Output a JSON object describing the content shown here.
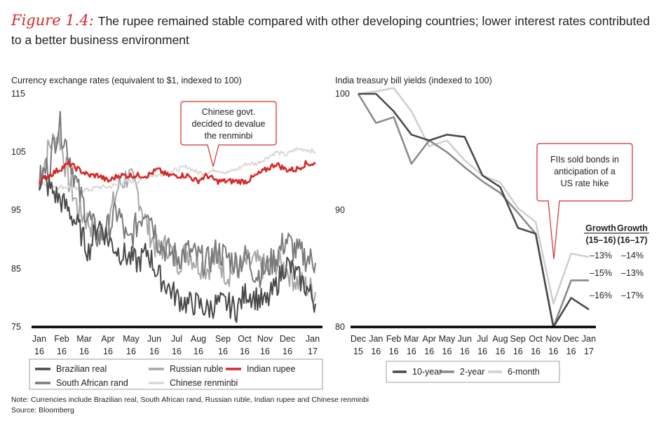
{
  "figure": {
    "label": "Figure 1.4:",
    "title": "The rupee remained stable compared with other developing countries; lower interest rates contributed to a better business environment"
  },
  "chart_data": [
    {
      "type": "line",
      "title": "Currency exchange rates (equivalent to $1, indexed to 100)",
      "ylim": [
        75,
        115
      ],
      "y_ticks": [
        "115",
        "105",
        "95",
        "85",
        "75"
      ],
      "x_ticks": [
        [
          "Jan",
          "16"
        ],
        [
          "Feb",
          "16"
        ],
        [
          "Mar",
          "16"
        ],
        [
          "Apr",
          "16"
        ],
        [
          "May",
          "16"
        ],
        [
          "Jun",
          "16"
        ],
        [
          "Jul",
          "16"
        ],
        [
          "Aug",
          "16"
        ],
        [
          "Sep",
          "16"
        ],
        [
          "Oct",
          "16"
        ],
        [
          "Nov",
          "16"
        ],
        [
          "Dec",
          "16"
        ],
        [
          "Jan",
          "17"
        ]
      ],
      "annotation": [
        "Chinese govt.",
        "decided to devalue",
        "the renminbi"
      ],
      "series": [
        {
          "name": "Brazilian real",
          "color": "#4a4a4a",
          "values": [
            100,
            99,
            97,
            95,
            92,
            88,
            93,
            90,
            88,
            87,
            86,
            88,
            84,
            82,
            80,
            79,
            79,
            78,
            79,
            79,
            78,
            81,
            80,
            79,
            82,
            86,
            84,
            82,
            79
          ]
        },
        {
          "name": "South African rand",
          "color": "#7a7a7a",
          "values": [
            100,
            103,
            110,
            105,
            98,
            94,
            90,
            92,
            95,
            89,
            93,
            96,
            90,
            88,
            87,
            88,
            87,
            86,
            88,
            87,
            86,
            87,
            84,
            85,
            87,
            90,
            88,
            87,
            86
          ]
        },
        {
          "name": "Russian ruble",
          "color": "#a7a7a7",
          "values": [
            100,
            106,
            108,
            100,
            95,
            93,
            91,
            93,
            99,
            101,
            98,
            92,
            88,
            89,
            86,
            88,
            86,
            85,
            87,
            84,
            85,
            86,
            86,
            85,
            86,
            85,
            83,
            82,
            81
          ]
        },
        {
          "name": "Indian rupee",
          "color": "#d42a2a",
          "values": [
            100,
            101,
            102,
            103,
            102,
            101,
            101,
            100,
            101,
            101,
            101,
            101,
            102,
            101,
            101,
            101,
            100,
            101,
            100,
            100,
            100,
            100,
            101,
            102,
            103,
            102,
            102,
            103,
            103
          ]
        },
        {
          "name": "Chinese renminbi",
          "color": "#d8d8d8",
          "values": [
            100,
            99.5,
            99,
            99,
            98.5,
            98.5,
            99,
            99,
            99.5,
            100,
            100,
            101,
            101,
            101.5,
            102,
            102.5,
            101.5,
            101.5,
            102,
            101.5,
            102,
            103,
            103,
            104,
            105,
            104.5,
            105.5,
            105.5,
            105
          ]
        }
      ],
      "legend": [
        "Brazilian real",
        "Russian ruble",
        "Indian rupee",
        "South African rand",
        "Chinese renminbi"
      ]
    },
    {
      "type": "line",
      "title": "India treasury bill yields (indexed to 100)",
      "ylim": [
        80,
        100
      ],
      "y_ticks": [
        "100",
        "90",
        "80"
      ],
      "x_ticks": [
        [
          "Dec",
          "15"
        ],
        [
          "Jan",
          "16"
        ],
        [
          "Feb",
          "16"
        ],
        [
          "Mar",
          "16"
        ],
        [
          "Apr",
          "16"
        ],
        [
          "May",
          "16"
        ],
        [
          "Jun",
          "16"
        ],
        [
          "Jul",
          "16"
        ],
        [
          "Aug",
          "16"
        ],
        [
          "Sep",
          "16"
        ],
        [
          "Oct",
          "16"
        ],
        [
          "Nov",
          "16"
        ],
        [
          "Dec",
          "16"
        ],
        [
          "Jan",
          "17"
        ]
      ],
      "annotation": [
        "FIIs sold bonds in",
        "anticipation of a",
        "US rate hike"
      ],
      "series": [
        {
          "name": "10-year",
          "color": "#4a4a4a",
          "values": [
            100,
            100,
            98.5,
            96.5,
            96,
            96.5,
            96.3,
            93,
            92,
            88.5,
            88,
            80,
            82.5,
            81.5
          ]
        },
        {
          "name": "2-year",
          "color": "#8a8a8a",
          "values": [
            100,
            97.5,
            98,
            94,
            96,
            95,
            93.7,
            92.5,
            91.5,
            89.8,
            88,
            80,
            84,
            84
          ]
        },
        {
          "name": "6-month",
          "color": "#d0d0d0",
          "values": [
            100,
            100.2,
            100.5,
            98.5,
            95.5,
            96,
            94.3,
            93,
            92.4,
            90.2,
            89,
            82,
            86.3,
            86
          ]
        }
      ],
      "legend": [
        "10-year",
        "2-year",
        "6-month"
      ],
      "growth_header": [
        [
          "Growth",
          "(15–16)"
        ],
        [
          "Growth",
          "(16–17)"
        ]
      ],
      "growth_rows": [
        [
          "–13%",
          "–14%"
        ],
        [
          "–15%",
          "–13%"
        ],
        [
          "–16%",
          "–17%"
        ]
      ]
    }
  ],
  "notes": {
    "note": "Note: Currencies include Brazilian real, South African rand, Russian ruble, Indian rupee and Chinese renminbi",
    "source": "Source: Bloomberg"
  }
}
